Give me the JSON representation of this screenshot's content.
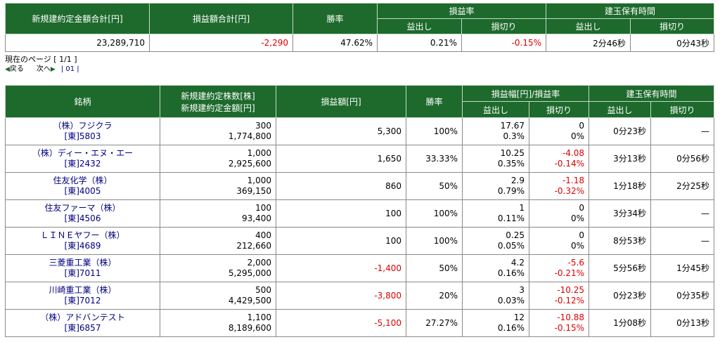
{
  "summary": {
    "headers": {
      "total_amount": "新規建約定金額合計[円]",
      "pnl_total": "損益額合計[円]",
      "win_rate": "勝率",
      "pnl_rate": "損益率",
      "holding_time": "建玉保有時間",
      "profit": "益出し",
      "loss": "損切り"
    },
    "values": {
      "total_amount": "23,289,710",
      "pnl_total": "-2,290",
      "win_rate": "47.62%",
      "profit_rate": "0.21%",
      "loss_rate": "-0.15%",
      "profit_time": "2分46秒",
      "loss_time": "0分43秒"
    }
  },
  "pager": {
    "current": "現在のページ [ 1/1 ]",
    "prev": "戻る",
    "next": "次へ",
    "pages": "| 01 |"
  },
  "table": {
    "headers": {
      "name": "銘柄",
      "shares": "新規建約定株数[株]",
      "amount": "新規建約定金額[円]",
      "pnl": "損益額[円]",
      "win_rate": "勝率",
      "range": "損益幅[円]/損益率",
      "holding": "建玉保有時間",
      "profit": "益出し",
      "loss": "損切り",
      "profit2": "益出し",
      "loss2": "損切り"
    },
    "rows": [
      {
        "name": "（株）フジクラ",
        "code": "[東]5803",
        "shares": "300",
        "amount": "1,774,800",
        "pnl": "5,300",
        "win": "100%",
        "profit_w": "17.67",
        "profit_r": "0.3%",
        "loss_w": "0",
        "loss_r": "0%",
        "profit_t": "0分23秒",
        "loss_t": "—"
      },
      {
        "name": "（株）ディー・エヌ・エー",
        "code": "[東]2432",
        "shares": "1,000",
        "amount": "2,925,600",
        "pnl": "1,650",
        "win": "33.33%",
        "profit_w": "10.25",
        "profit_r": "0.35%",
        "loss_w": "-4.08",
        "loss_r": "-0.14%",
        "profit_t": "3分13秒",
        "loss_t": "0分56秒"
      },
      {
        "name": "住友化学（株）",
        "code": "[東]4005",
        "shares": "1,000",
        "amount": "369,150",
        "pnl": "860",
        "win": "50%",
        "profit_w": "2.9",
        "profit_r": "0.79%",
        "loss_w": "-1.18",
        "loss_r": "-0.32%",
        "profit_t": "1分18秒",
        "loss_t": "2分25秒"
      },
      {
        "name": "住友ファーマ（株）",
        "code": "[東]4506",
        "shares": "100",
        "amount": "93,400",
        "pnl": "100",
        "win": "100%",
        "profit_w": "1",
        "profit_r": "0.11%",
        "loss_w": "0",
        "loss_r": "0%",
        "profit_t": "3分34秒",
        "loss_t": "—"
      },
      {
        "name": "ＬＩＮＥヤフー（株）",
        "code": "[東]4689",
        "shares": "400",
        "amount": "212,660",
        "pnl": "100",
        "win": "100%",
        "profit_w": "0.25",
        "profit_r": "0.05%",
        "loss_w": "0",
        "loss_r": "0%",
        "profit_t": "8分53秒",
        "loss_t": "—"
      },
      {
        "name": "三菱重工業（株）",
        "code": "[東]7011",
        "shares": "2,000",
        "amount": "5,295,000",
        "pnl": "-1,400",
        "win": "50%",
        "profit_w": "4.2",
        "profit_r": "0.16%",
        "loss_w": "-5.6",
        "loss_r": "-0.21%",
        "profit_t": "5分56秒",
        "loss_t": "1分45秒"
      },
      {
        "name": "川崎重工業（株）",
        "code": "[東]7012",
        "shares": "500",
        "amount": "4,429,500",
        "pnl": "-3,800",
        "win": "20%",
        "profit_w": "3",
        "profit_r": "0.03%",
        "loss_w": "-10.25",
        "loss_r": "-0.12%",
        "profit_t": "0分23秒",
        "loss_t": "0分35秒"
      },
      {
        "name": "（株）アドバンテスト",
        "code": "[東]6857",
        "shares": "1,100",
        "amount": "8,189,600",
        "pnl": "-5,100",
        "win": "27.27%",
        "profit_w": "12",
        "profit_r": "0.16%",
        "loss_w": "-10.88",
        "loss_r": "-0.15%",
        "profit_t": "1分08秒",
        "loss_t": "0分13秒"
      }
    ]
  },
  "colors": {
    "header_bg": "#1d6a2c",
    "negative": "#e00000",
    "link": "#000080"
  }
}
